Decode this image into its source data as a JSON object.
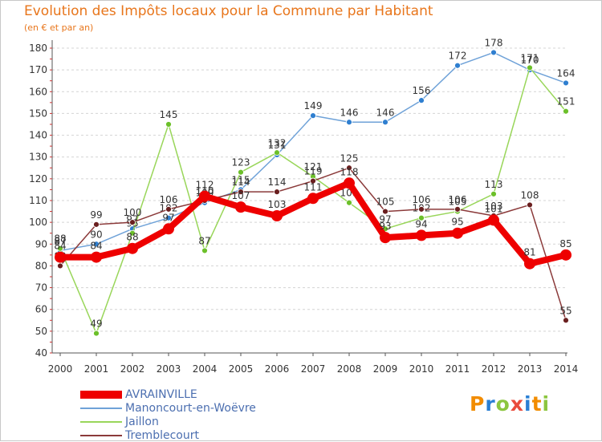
{
  "title": "Evolution des Impôts locaux pour la Commune par Habitant",
  "subtitle": "(en € et par an)",
  "logo_text": "Proxiti",
  "logo_colors": [
    "#f28c00",
    "#2a7fd4",
    "#8cc63f",
    "#e94b3c",
    "#2a7fd4",
    "#f28c00",
    "#8cc63f"
  ],
  "chart_data": {
    "type": "line",
    "title": "Evolution des Impôts locaux pour la Commune par Habitant",
    "subtitle": "(en € et par an)",
    "x": [
      "2000",
      "2001",
      "2002",
      "2003",
      "2004",
      "2005",
      "2006",
      "2007",
      "2008",
      "2009",
      "2010",
      "2011",
      "2012",
      "2013",
      "2014"
    ],
    "ylim": [
      40,
      180
    ],
    "yticks": [
      40,
      50,
      60,
      70,
      80,
      90,
      100,
      110,
      120,
      130,
      140,
      150,
      160,
      170,
      180
    ],
    "grid": "horizontal",
    "legend_position": "bottom-left",
    "series": [
      {
        "name": "Manoncourt-en-Woëvre",
        "color": "#6fa2d8",
        "marker": "#2f7fd0",
        "values": [
          87,
          90,
          97,
          102,
          109,
          115,
          131,
          149,
          146,
          146,
          156,
          172,
          178,
          170,
          164
        ],
        "labels": [
          "87",
          "90",
          "97",
          "102",
          "109",
          "115",
          "131",
          "149",
          "146",
          "146",
          "156",
          "172",
          "178",
          "170",
          "164"
        ]
      },
      {
        "name": "Jaillon",
        "color": "#99d65a",
        "marker": "#6cc02a",
        "values": [
          88,
          49,
          95,
          145,
          87,
          123,
          132,
          121,
          109,
          97,
          102,
          105,
          113,
          171,
          151
        ],
        "labels": [
          "88",
          "49",
          "95",
          "145",
          "87",
          "123",
          "132",
          "121",
          "109",
          "97",
          "102",
          "105",
          "113",
          "171",
          "151"
        ]
      },
      {
        "name": "Tremblecourt",
        "color": "#8b3a3a",
        "marker": "#6a1f1f",
        "values": [
          80,
          99,
          100,
          106,
          110,
          114,
          114,
          119,
          125,
          105,
          106,
          106,
          103,
          108,
          55
        ],
        "labels": [
          "80",
          "99",
          "100",
          "106",
          "110",
          "114",
          "114",
          "119",
          "125",
          "105",
          "106",
          "106",
          "103",
          "108",
          "55"
        ]
      },
      {
        "name": "AVRAINVILLE",
        "color": "#ee0000",
        "marker": "#ee0000",
        "values": [
          84,
          84,
          88,
          97,
          112,
          107,
          103,
          111,
          118,
          93,
          94,
          95,
          101,
          81,
          85
        ],
        "labels": [
          "84",
          "84",
          "88",
          "97",
          "112",
          "107",
          "103",
          "111",
          "118",
          "93",
          "94",
          "95",
          "101",
          "81",
          "85"
        ]
      }
    ]
  },
  "legend": [
    {
      "label": "AVRAINVILLE",
      "color": "#ee0000",
      "thick": true
    },
    {
      "label": "Manoncourt-en-Woëvre",
      "color": "#6fa2d8",
      "thick": false
    },
    {
      "label": "Jaillon",
      "color": "#99d65a",
      "thick": false
    },
    {
      "label": "Tremblecourt",
      "color": "#8b3a3a",
      "thick": false
    }
  ]
}
